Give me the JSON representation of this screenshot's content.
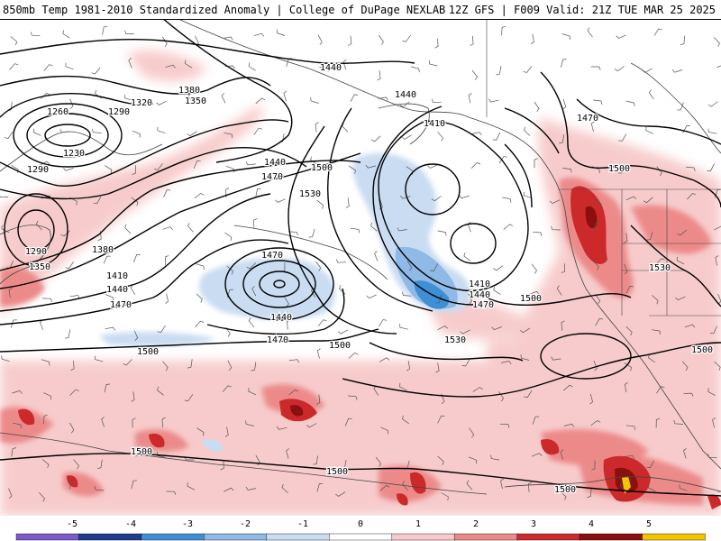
{
  "header": {
    "title": "850mb Temp 1981-2010 Standardized Anomaly | College of DuPage NEXLAB",
    "run_info": "12Z GFS | F009 Valid: 21Z TUE MAR 25 2025"
  },
  "colors": {
    "background": "#ffffff",
    "warm_light": "#f7c9c9",
    "warm_mid": "#ec8a8a",
    "warm_strong": "#cc2a2a",
    "warm_extreme": "#8a0f0f",
    "cold_light": "#c9dcf2",
    "cold_mid": "#8fb9e6",
    "cold_strong": "#3f8fd6",
    "contour": "#000000",
    "coast": "#444444"
  },
  "contour_labels": [
    {
      "text": "1440"
    },
    {
      "text": "1380"
    },
    {
      "text": "1350"
    },
    {
      "text": "1320"
    },
    {
      "text": "1290"
    },
    {
      "text": "1260"
    },
    {
      "text": "1230"
    },
    {
      "text": "1290"
    },
    {
      "text": "1440"
    },
    {
      "text": "1470"
    },
    {
      "text": "1500"
    },
    {
      "text": "1470"
    },
    {
      "text": "1530"
    },
    {
      "text": "1380"
    },
    {
      "text": "1410"
    },
    {
      "text": "1440"
    },
    {
      "text": "1470"
    },
    {
      "text": "1290"
    },
    {
      "text": "1350"
    },
    {
      "text": "1470"
    },
    {
      "text": "1440"
    },
    {
      "text": "1470"
    },
    {
      "text": "1500"
    },
    {
      "text": "1500"
    },
    {
      "text": "1410"
    },
    {
      "text": "1440"
    },
    {
      "text": "1470"
    },
    {
      "text": "1500"
    },
    {
      "text": "1530"
    },
    {
      "text": "1440"
    },
    {
      "text": "1410"
    },
    {
      "text": "1470"
    },
    {
      "text": "1500"
    },
    {
      "text": "1530"
    },
    {
      "text": "1500"
    },
    {
      "text": "1500"
    },
    {
      "text": "1500"
    },
    {
      "text": "1500"
    }
  ],
  "colorbar": {
    "ticks": [
      "-5",
      "-4",
      "-3",
      "-2",
      "-1",
      "0",
      "1",
      "2",
      "3",
      "4",
      "5"
    ],
    "colors": [
      "#7a5cc7",
      "#1f3d8f",
      "#3f8fd6",
      "#8fb9e6",
      "#c9dcf2",
      "#ffffff",
      "#f7c9c9",
      "#ec8a8a",
      "#cc2a2a",
      "#8a0f0f",
      "#f2c500"
    ]
  }
}
